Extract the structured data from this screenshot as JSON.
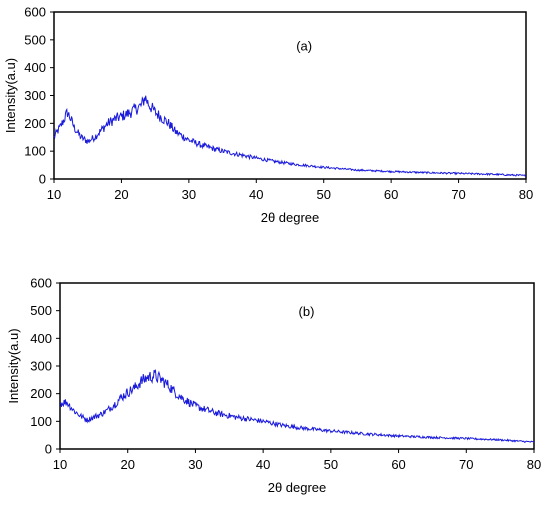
{
  "chart_data": [
    {
      "type": "line",
      "panel_label": "(a)",
      "xlabel": "2θ degree",
      "ylabel": "Intensity(a.u)",
      "xlim": [
        10,
        80
      ],
      "ylim": [
        0,
        600
      ],
      "xticks": [
        10,
        20,
        30,
        40,
        50,
        60,
        70,
        80
      ],
      "yticks": [
        0,
        100,
        200,
        300,
        400,
        500,
        600
      ],
      "grid": false,
      "legend": "none",
      "series": [
        {
          "color": "#1a1adb",
          "x": [
            10,
            11,
            12,
            12.5,
            13,
            14,
            15,
            16,
            17,
            18,
            19,
            20,
            21,
            22,
            23,
            23.5,
            24,
            25,
            26,
            27,
            28,
            30,
            32,
            35,
            38,
            40,
            43,
            46,
            50,
            55,
            60,
            65,
            70,
            75,
            80
          ],
          "y": [
            150,
            190,
            240,
            215,
            185,
            150,
            135,
            150,
            175,
            200,
            215,
            225,
            235,
            250,
            265,
            295,
            270,
            240,
            220,
            200,
            170,
            140,
            120,
            100,
            85,
            75,
            62,
            52,
            42,
            32,
            27,
            23,
            20,
            17,
            12
          ]
        }
      ]
    },
    {
      "type": "line",
      "panel_label": "(b)",
      "xlabel": "2θ degree",
      "ylabel": "Intensity(a.u)",
      "xlim": [
        10,
        80
      ],
      "ylim": [
        0,
        600
      ],
      "xticks": [
        10,
        20,
        30,
        40,
        50,
        60,
        70,
        80
      ],
      "yticks": [
        0,
        100,
        200,
        300,
        400,
        500,
        600
      ],
      "grid": false,
      "legend": "none",
      "series": [
        {
          "color": "#1a1adb",
          "x": [
            10,
            11,
            12,
            13,
            14,
            15,
            16,
            17,
            18,
            19,
            20,
            21,
            22,
            23,
            24,
            25,
            26,
            27,
            28,
            30,
            33,
            36,
            40,
            43,
            46,
            50,
            55,
            60,
            65,
            70,
            75,
            78,
            80
          ],
          "y": [
            165,
            170,
            140,
            120,
            105,
            115,
            125,
            140,
            160,
            185,
            205,
            220,
            245,
            260,
            265,
            250,
            230,
            205,
            185,
            155,
            130,
            115,
            100,
            85,
            75,
            65,
            55,
            47,
            42,
            38,
            33,
            28,
            25
          ]
        }
      ]
    }
  ]
}
